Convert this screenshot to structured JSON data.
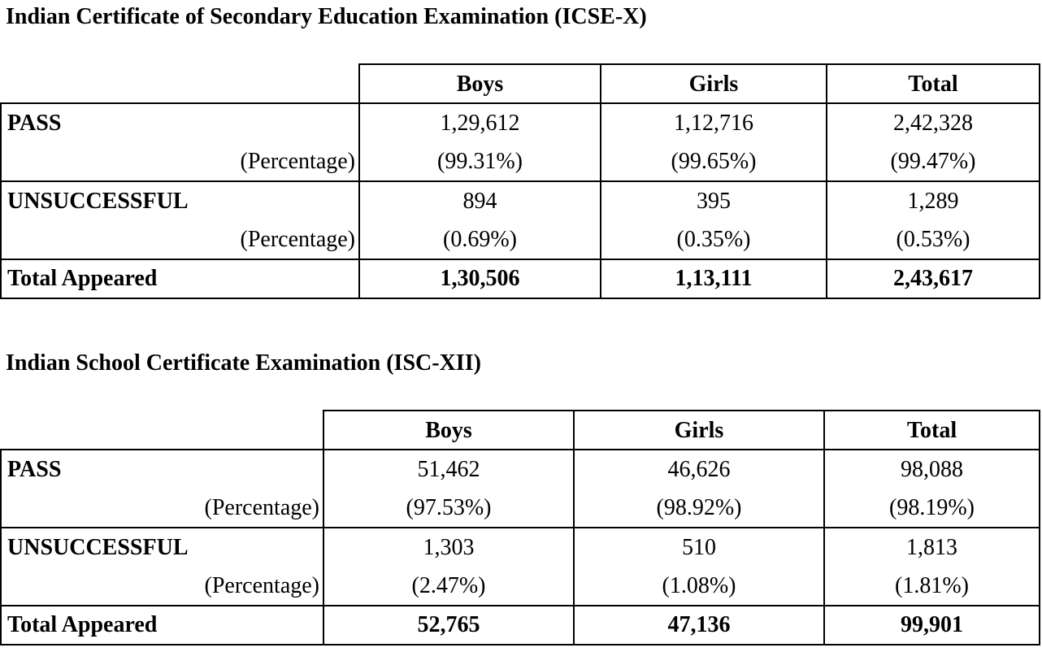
{
  "icse": {
    "title": "Indian Certificate of Secondary Education Examination (ICSE-X)",
    "columns": [
      "Boys",
      "Girls",
      "Total"
    ],
    "pass": {
      "label": "PASS",
      "values": [
        "1,29,612",
        "1,12,716",
        "2,42,328"
      ],
      "pct_label": "(Percentage)",
      "pcts": [
        "(99.31%)",
        "(99.65%)",
        "(99.47%)"
      ]
    },
    "unsuccessful": {
      "label": "UNSUCCESSFUL",
      "values": [
        "894",
        "395",
        "1,289"
      ],
      "pct_label": "(Percentage)",
      "pcts": [
        "(0.69%)",
        "(0.35%)",
        "(0.53%)"
      ]
    },
    "total": {
      "label": "Total Appeared",
      "values": [
        "1,30,506",
        "1,13,111",
        "2,43,617"
      ]
    }
  },
  "isc": {
    "title": "Indian School Certificate Examination (ISC-XII)",
    "columns": [
      "Boys",
      "Girls",
      "Total"
    ],
    "pass": {
      "label": "PASS",
      "values": [
        "51,462",
        "46,626",
        "98,088"
      ],
      "pct_label": "(Percentage)",
      "pcts": [
        "(97.53%)",
        "(98.92%)",
        "(98.19%)"
      ]
    },
    "unsuccessful": {
      "label": "UNSUCCESSFUL",
      "values": [
        "1,303",
        "510",
        "1,813"
      ],
      "pct_label": "(Percentage)",
      "pcts": [
        "(2.47%)",
        "(1.08%)",
        "(1.81%)"
      ]
    },
    "total": {
      "label": "Total Appeared",
      "values": [
        "52,765",
        "47,136",
        "99,901"
      ]
    }
  }
}
